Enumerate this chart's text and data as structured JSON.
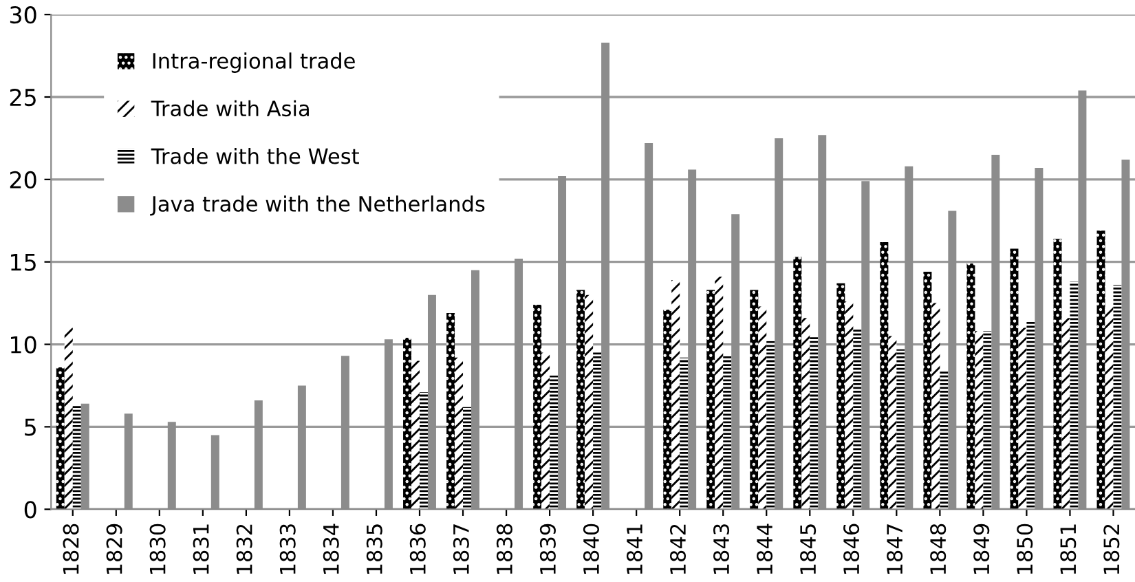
{
  "chart_data": {
    "type": "bar",
    "categories": [
      "1828",
      "1829",
      "1830",
      "1831",
      "1832",
      "1833",
      "1834",
      "1835",
      "1836",
      "1837",
      "1838",
      "1839",
      "1840",
      "1841",
      "1842",
      "1843",
      "1844",
      "1845",
      "1846",
      "1847",
      "1848",
      "1849",
      "1850",
      "1851",
      "1852"
    ],
    "series": [
      {
        "name": "Intra-regional trade",
        "color": "#000000",
        "values": [
          8.6,
          null,
          null,
          null,
          null,
          null,
          null,
          null,
          10.4,
          11.9,
          null,
          12.4,
          13.3,
          null,
          12.1,
          13.3,
          13.3,
          15.3,
          13.7,
          16.2,
          14.4,
          14.9,
          15.8,
          16.4,
          16.9
        ]
      },
      {
        "name": "Trade with Asia",
        "color": "#ffffff",
        "values": [
          11.0,
          null,
          null,
          null,
          null,
          null,
          null,
          null,
          9.0,
          9.2,
          null,
          9.5,
          13.0,
          null,
          13.9,
          14.1,
          12.3,
          11.6,
          12.6,
          10.5,
          12.5,
          10.8,
          11.0,
          11.6,
          12.3
        ]
      },
      {
        "name": "Trade with the West",
        "color": "#ffffff",
        "values": [
          6.3,
          null,
          null,
          null,
          null,
          null,
          null,
          null,
          7.1,
          6.2,
          null,
          8.1,
          9.6,
          null,
          9.2,
          9.3,
          10.2,
          10.5,
          10.9,
          9.7,
          8.4,
          10.8,
          11.4,
          13.8,
          13.6
        ]
      },
      {
        "name": "Java trade with the Netherlands",
        "color": "#8c8c8c",
        "values": [
          6.4,
          5.8,
          5.3,
          4.5,
          6.6,
          7.5,
          9.3,
          10.3,
          13.0,
          14.5,
          15.2,
          20.2,
          28.3,
          22.2,
          20.6,
          17.9,
          22.5,
          22.7,
          19.9,
          20.8,
          18.1,
          21.5,
          20.7,
          25.4,
          21.2
        ]
      }
    ],
    "ylim": [
      0,
      30
    ],
    "yticks": [
      0,
      5,
      10,
      15,
      20,
      25,
      30
    ],
    "grid": "y",
    "legend": "top left"
  }
}
